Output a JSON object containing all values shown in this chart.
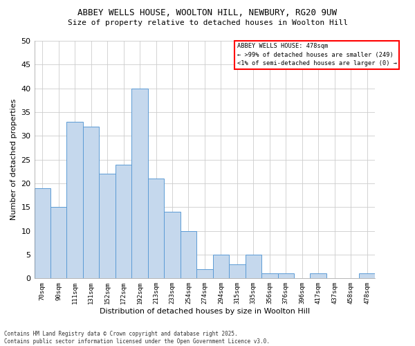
{
  "title1": "ABBEY WELLS HOUSE, WOOLTON HILL, NEWBURY, RG20 9UW",
  "title2": "Size of property relative to detached houses in Woolton Hill",
  "xlabel": "Distribution of detached houses by size in Woolton Hill",
  "ylabel": "Number of detached properties",
  "categories": [
    "70sqm",
    "90sqm",
    "111sqm",
    "131sqm",
    "152sqm",
    "172sqm",
    "192sqm",
    "213sqm",
    "233sqm",
    "254sqm",
    "274sqm",
    "294sqm",
    "315sqm",
    "335sqm",
    "356sqm",
    "376sqm",
    "396sqm",
    "417sqm",
    "437sqm",
    "458sqm",
    "478sqm"
  ],
  "values": [
    19,
    15,
    33,
    32,
    22,
    24,
    40,
    21,
    14,
    10,
    2,
    5,
    3,
    5,
    1,
    1,
    0,
    1,
    0,
    0,
    1
  ],
  "bar_color": "#c5d8ed",
  "bar_edge_color": "#5b9bd5",
  "legend_title": "ABBEY WELLS HOUSE: 478sqm",
  "legend_line1": "← >99% of detached houses are smaller (249)",
  "legend_line2": "<1% of semi-detached houses are larger (0) →",
  "ylim": [
    0,
    50
  ],
  "yticks": [
    0,
    5,
    10,
    15,
    20,
    25,
    30,
    35,
    40,
    45,
    50
  ],
  "footnote": "Contains HM Land Registry data © Crown copyright and database right 2025.\nContains public sector information licensed under the Open Government Licence v3.0.",
  "background_color": "#ffffff"
}
